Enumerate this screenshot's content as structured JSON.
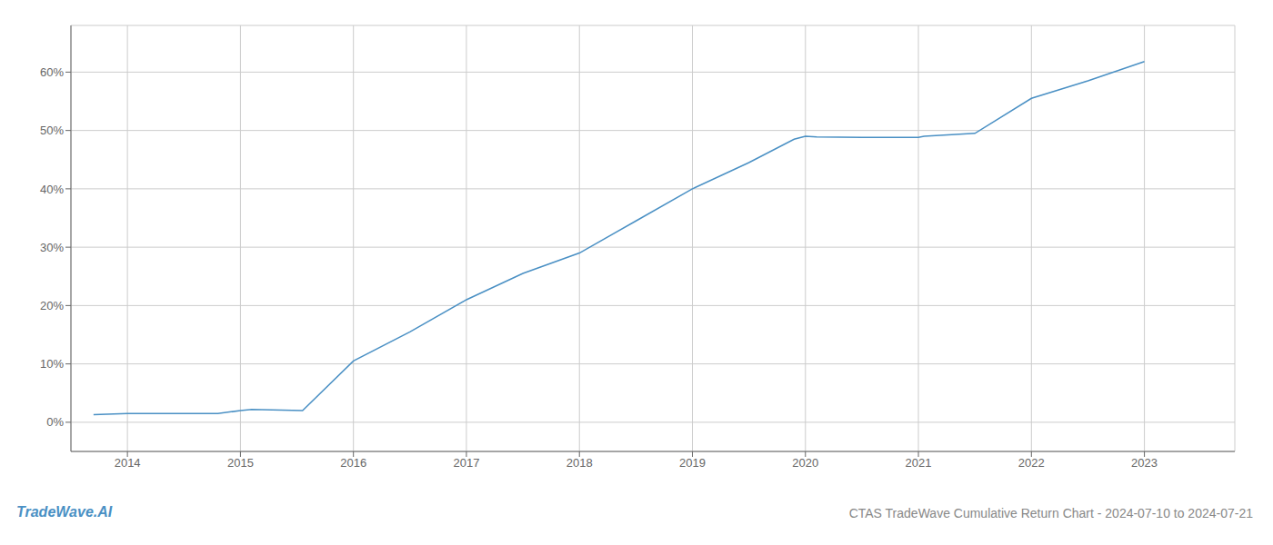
{
  "chart_data": {
    "type": "line",
    "title": "CTAS TradeWave Cumulative Return Chart - 2024-07-10 to 2024-07-21",
    "annotations": [
      "TradeWave.AI"
    ],
    "color": "#4a90c4",
    "x": [
      2013.7,
      2014.0,
      2014.8,
      2015.0,
      2015.1,
      2015.55,
      2016.0,
      2016.5,
      2017.0,
      2017.5,
      2018.0,
      2018.5,
      2019.0,
      2019.5,
      2019.9,
      2020.0,
      2020.1,
      2020.5,
      2021.0,
      2021.05,
      2021.5,
      2022.0,
      2022.5,
      2023.0
    ],
    "values": [
      1.3,
      1.5,
      1.5,
      2.0,
      2.2,
      2.0,
      10.5,
      15.5,
      21.0,
      25.5,
      29.0,
      34.5,
      40.0,
      44.5,
      48.5,
      49.0,
      48.9,
      48.8,
      48.8,
      49.0,
      49.5,
      55.5,
      58.5,
      61.8
    ],
    "xlim": [
      2013.5,
      2023.8
    ],
    "ylim": [
      -5,
      68
    ],
    "xticks": [
      2014,
      2015,
      2016,
      2017,
      2018,
      2019,
      2020,
      2021,
      2022,
      2023
    ],
    "yticks": [
      {
        "value": 0,
        "label": "0%"
      },
      {
        "value": 10,
        "label": "10%"
      },
      {
        "value": 20,
        "label": "20%"
      },
      {
        "value": 30,
        "label": "30%"
      },
      {
        "value": 40,
        "label": "40%"
      },
      {
        "value": 50,
        "label": "50%"
      },
      {
        "value": 60,
        "label": "60%"
      }
    ],
    "grid": true
  }
}
